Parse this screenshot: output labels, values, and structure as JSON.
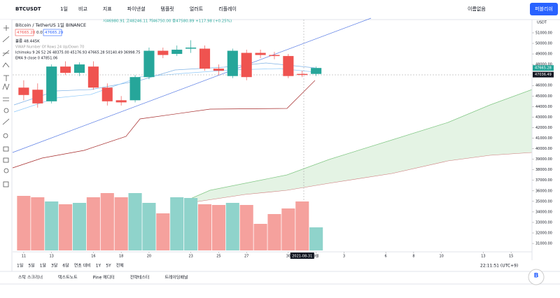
{
  "toolbar": {
    "symbol": "BTCUSDT",
    "interval": "1일",
    "items": [
      "비교",
      "지표",
      "파이낸셜",
      "템플릿",
      "얼러트",
      "리플레이"
    ],
    "layout_name": "이름없음",
    "publish": "퍼블리쉬"
  },
  "legend": {
    "title": "Bitcoin / TetherUS  1일  BINANCE",
    "ohlc": "시46980.91 고48246.11 저46750.00 종47580.89 +117.98 (+0.25%)",
    "bid": "47665.28",
    "spread": "0.01",
    "ask": "47665.29",
    "volume": "볼륨  48.445K",
    "vwap": "VWAP Number Of Rows 24 Up/Down 70",
    "ichimoku": "Ichimoku 9 26 52 26  48375.00  45176.93  47665.28  50140.49  36998.75",
    "ema": "EMA 9 close 0  47851.06"
  },
  "chart_data": {
    "type": "candlestick",
    "x": [
      0,
      1,
      2,
      3,
      4,
      5,
      6,
      7,
      8,
      9,
      10,
      11,
      12,
      13,
      14,
      15,
      16,
      17,
      18,
      19,
      20,
      21
    ],
    "open": [
      45800,
      45600,
      44500,
      47800,
      47200,
      47800,
      45800,
      44600,
      44600,
      46800,
      49300,
      49000,
      49500,
      49500,
      47600,
      46900,
      49100,
      49100,
      48900,
      48800,
      47100,
      47100
    ],
    "high": [
      46500,
      46200,
      48000,
      48300,
      48200,
      48300,
      46200,
      45000,
      47000,
      49600,
      49600,
      49800,
      50300,
      49800,
      48000,
      49500,
      49400,
      49400,
      49200,
      49000,
      47400,
      47800
    ],
    "low": [
      44600,
      43900,
      44300,
      47000,
      46900,
      45600,
      44100,
      44100,
      44400,
      46600,
      48600,
      48800,
      49100,
      47400,
      47000,
      46700,
      46500,
      48600,
      48500,
      46700,
      46800,
      46900
    ],
    "close": [
      45100,
      44300,
      47800,
      47200,
      48000,
      45800,
      44500,
      44400,
      46800,
      49300,
      48900,
      49400,
      49600,
      47600,
      47400,
      49300,
      46800,
      48900,
      48800,
      46900,
      47000,
      47665
    ],
    "volume": [
      78,
      76,
      70,
      66,
      68,
      76,
      82,
      76,
      82,
      68,
      53,
      76,
      75,
      66,
      65,
      68,
      65,
      38,
      52,
      60,
      70,
      33
    ],
    "xlim": [
      -0.8,
      36.5
    ],
    "ylim": [
      30340,
      52260
    ],
    "yticks": [
      {
        "value": 51000,
        "label": "51000.00"
      },
      {
        "value": 50000,
        "label": "50000.00"
      },
      {
        "value": 49000,
        "label": "49000.00"
      },
      {
        "value": 48000,
        "label": "48000.00"
      },
      {
        "value": 46000,
        "label": "46000.00"
      },
      {
        "value": 45000,
        "label": "45000.00"
      },
      {
        "value": 44000,
        "label": "44000.00"
      },
      {
        "value": 43000,
        "label": "43000.00"
      },
      {
        "value": 42000,
        "label": "42000.00"
      },
      {
        "value": 41000,
        "label": "41000.00"
      },
      {
        "value": 40000,
        "label": "40000.00"
      },
      {
        "value": 39000,
        "label": "39000.00"
      },
      {
        "value": 38000,
        "label": "38000.00"
      },
      {
        "value": 37000,
        "label": "37000.00"
      },
      {
        "value": 36000,
        "label": "36000.00"
      },
      {
        "value": 35000,
        "label": "35000.00"
      },
      {
        "value": 34000,
        "label": "34000.00"
      },
      {
        "value": 33000,
        "label": "33000.00"
      },
      {
        "value": 32000,
        "label": "32000.00"
      },
      {
        "value": 31000,
        "label": "31000.00"
      }
    ],
    "xticks": [
      {
        "value": 0,
        "label": "11"
      },
      {
        "value": 2,
        "label": "13"
      },
      {
        "value": 5,
        "label": "16"
      },
      {
        "value": 7,
        "label": "18"
      },
      {
        "value": 9,
        "label": "20"
      },
      {
        "value": 12,
        "label": "23"
      },
      {
        "value": 14,
        "label": "25"
      },
      {
        "value": 16,
        "label": "27"
      },
      {
        "value": 19,
        "label": "30"
      },
      {
        "value": 21,
        "label": "9월"
      },
      {
        "value": 23,
        "label": "3"
      },
      {
        "value": 26,
        "label": "6"
      },
      {
        "value": 28,
        "label": "8"
      },
      {
        "value": 30,
        "label": "10"
      },
      {
        "value": 33,
        "label": "13"
      },
      {
        "value": 35,
        "label": "15"
      }
    ],
    "axis_unit": "USDT",
    "last_price": {
      "value": 47665.28,
      "label": "47665.28"
    },
    "crosshair": {
      "price": {
        "value": 47036.49,
        "label": "47036.49"
      },
      "date": {
        "value": 20,
        "label": "2021-08-31"
      }
    },
    "up_color": "#26a69a",
    "down_color": "#ef5350",
    "volume_up_color": "#8fd3cb",
    "volume_down_color": "#f5a19d"
  },
  "bottom_bar": {
    "ranges": [
      "1일",
      "5일",
      "1달",
      "3달",
      "6달",
      "연초 대비",
      "1Y",
      "5Y",
      "전체"
    ],
    "clock": "22:11:51 (UTC+9)",
    "tabs": [
      "스탁 스크리너",
      "텍스트노트",
      "Pine 에디터",
      "전략테스터",
      "트레이딩패널"
    ]
  }
}
